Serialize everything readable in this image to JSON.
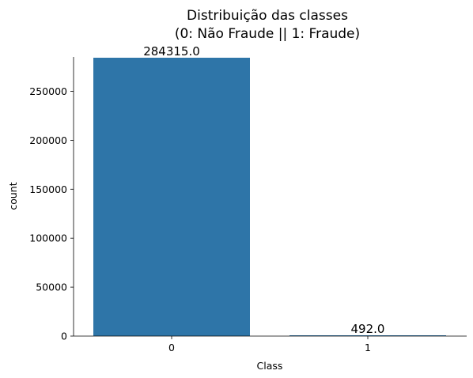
{
  "chart_data": {
    "type": "bar",
    "title": "Distribuição das classes",
    "subtitle": "(0: Não Fraude || 1: Fraude)",
    "xlabel": "Class",
    "ylabel": "count",
    "categories": [
      "0",
      "1"
    ],
    "values": [
      284315,
      492
    ],
    "data_labels": [
      "284315.0",
      "492.0"
    ],
    "ylim": [
      0,
      290000
    ],
    "yticks": [
      0,
      50000,
      100000,
      150000,
      200000,
      250000
    ],
    "ytick_labels": [
      "0",
      "50000",
      "100000",
      "150000",
      "200000",
      "250000"
    ],
    "bar_colors": [
      "#2e75a8",
      "#2e75a8"
    ],
    "grid": false,
    "legend": "none"
  }
}
